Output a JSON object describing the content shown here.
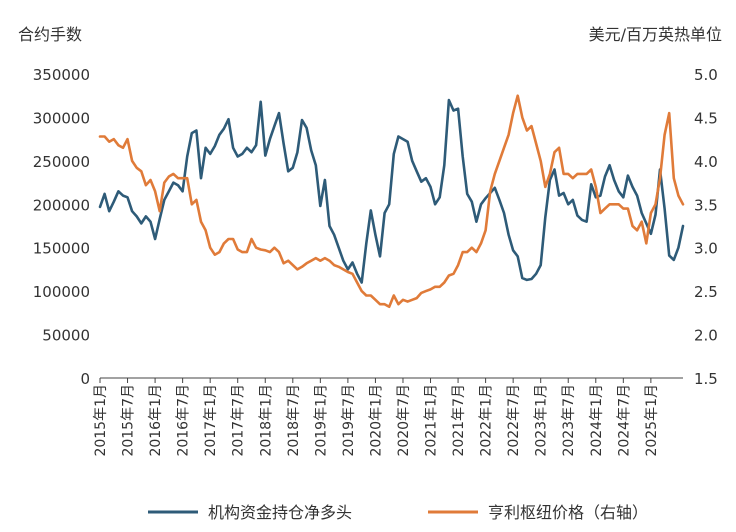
{
  "chart_data": {
    "type": "line",
    "left_axis_title": "合约手数",
    "right_axis_title": "美元/百万英热单位",
    "left_ylim": [
      0,
      350000
    ],
    "left_ticks": [
      0,
      50000,
      100000,
      150000,
      200000,
      250000,
      300000,
      350000
    ],
    "left_tick_labels": [
      "0",
      "50000",
      "100000",
      "150000",
      "200000",
      "250000",
      "300000",
      "350000"
    ],
    "right_ylim": [
      1.5,
      5.0
    ],
    "right_ticks": [
      1.5,
      2.0,
      2.5,
      3.0,
      3.5,
      4.0,
      4.5,
      5.0
    ],
    "right_tick_labels": [
      "1.5",
      "2.0",
      "2.5",
      "3.0",
      "3.5",
      "4.0",
      "4.5",
      "5.0"
    ],
    "x_start_month": 0,
    "x_end_month": 127,
    "x_tick_months": [
      0,
      6,
      12,
      18,
      24,
      30,
      36,
      42,
      48,
      54,
      60,
      66,
      72,
      78,
      84,
      90,
      96,
      102,
      108,
      114,
      120
    ],
    "x_tick_labels": [
      "2015年1月",
      "2015年7月",
      "2016年1月",
      "2016年7月",
      "2017年1月",
      "2017年7月",
      "2018年1月",
      "2018年7月",
      "2019年1月",
      "2019年7月",
      "2020年1月",
      "2020年7月",
      "2021年1月",
      "2021年7月",
      "2022年1月",
      "2022年7月",
      "2023年1月",
      "2023年7月",
      "2024年1月",
      "2024年7月",
      "2025年1月"
    ],
    "series": [
      {
        "name": "机构资金持仓净多头",
        "axis": "left",
        "color": "#2e5b78",
        "x": [
          0,
          1,
          2,
          3,
          4,
          5,
          6,
          7,
          8,
          9,
          10,
          11,
          12,
          13,
          14,
          15,
          16,
          17,
          18,
          19,
          20,
          21,
          22,
          23,
          24,
          25,
          26,
          27,
          28,
          29,
          30,
          31,
          32,
          33,
          34,
          35,
          36,
          37,
          38,
          39,
          40,
          41,
          42,
          43,
          44,
          45,
          46,
          47,
          48,
          49,
          50,
          51,
          52,
          53,
          54,
          55,
          56,
          57,
          58,
          59,
          60,
          61,
          62,
          63,
          64,
          65,
          66,
          67,
          68,
          69,
          70,
          71,
          72,
          73,
          74,
          75,
          76,
          77,
          78,
          79,
          80,
          81,
          82,
          83,
          84,
          85,
          86,
          87,
          88,
          89,
          90,
          91,
          92,
          93,
          94,
          95,
          96,
          97,
          98,
          99,
          100,
          101,
          102,
          103,
          104,
          105,
          106,
          107,
          108,
          109,
          110,
          111,
          112,
          113,
          114,
          115,
          116,
          117,
          118,
          119,
          120,
          121,
          122,
          123,
          124,
          125,
          126,
          127
        ],
        "values": [
          197000,
          212000,
          192000,
          203000,
          215000,
          210000,
          208000,
          192000,
          186000,
          178000,
          186000,
          180000,
          160000,
          183000,
          205000,
          215000,
          225000,
          222000,
          215000,
          255000,
          282000,
          285000,
          230000,
          265000,
          258000,
          267000,
          280000,
          287000,
          298000,
          265000,
          255000,
          258000,
          265000,
          260000,
          268000,
          318000,
          256000,
          275000,
          290000,
          305000,
          270000,
          238000,
          242000,
          260000,
          297000,
          288000,
          262000,
          245000,
          198000,
          228000,
          175000,
          165000,
          150000,
          135000,
          125000,
          133000,
          120000,
          110000,
          155000,
          193000,
          165000,
          140000,
          190000,
          200000,
          258000,
          278000,
          275000,
          272000,
          250000,
          238000,
          226000,
          230000,
          220000,
          200000,
          208000,
          245000,
          320000,
          308000,
          310000,
          255000,
          212000,
          203000,
          180000,
          200000,
          207000,
          213000,
          219000,
          205000,
          190000,
          165000,
          147000,
          140000,
          115000,
          113000,
          114000,
          120000,
          130000,
          185000,
          228000,
          240000,
          210000,
          213000,
          200000,
          205000,
          187000,
          182000,
          180000,
          223000,
          208000,
          210000,
          232000,
          245000,
          228000,
          215000,
          208000,
          233000,
          220000,
          210000,
          190000,
          178000,
          166000,
          188000,
          240000,
          195000,
          141000,
          136000,
          150000,
          175000
        ]
      },
      {
        "name": "亨利枢纽价格（右轴）",
        "axis": "right",
        "color": "#e07b39",
        "x": [
          0,
          1,
          2,
          3,
          4,
          5,
          6,
          7,
          8,
          9,
          10,
          11,
          12,
          13,
          14,
          15,
          16,
          17,
          18,
          19,
          20,
          21,
          22,
          23,
          24,
          25,
          26,
          27,
          28,
          29,
          30,
          31,
          32,
          33,
          34,
          35,
          36,
          37,
          38,
          39,
          40,
          41,
          42,
          43,
          44,
          45,
          46,
          47,
          48,
          49,
          50,
          51,
          52,
          53,
          54,
          55,
          56,
          57,
          58,
          59,
          60,
          61,
          62,
          63,
          64,
          65,
          66,
          67,
          68,
          69,
          70,
          71,
          72,
          73,
          74,
          75,
          76,
          77,
          78,
          79,
          80,
          81,
          82,
          83,
          84,
          85,
          86,
          87,
          88,
          89,
          90,
          91,
          92,
          93,
          94,
          95,
          96,
          97,
          98,
          99,
          100,
          101,
          102,
          103,
          104,
          105,
          106,
          107,
          108,
          109,
          110,
          111,
          112,
          113,
          114,
          115,
          116,
          117,
          118,
          119,
          120,
          121,
          122,
          123,
          124,
          125,
          126,
          127
        ],
        "values": [
          4.28,
          4.28,
          4.22,
          4.25,
          4.18,
          4.15,
          4.25,
          4.0,
          3.92,
          3.88,
          3.72,
          3.78,
          3.65,
          3.42,
          3.75,
          3.82,
          3.85,
          3.8,
          3.8,
          3.8,
          3.5,
          3.55,
          3.3,
          3.2,
          3.0,
          2.92,
          2.95,
          3.05,
          3.1,
          3.1,
          2.98,
          2.95,
          2.95,
          3.1,
          3.0,
          2.98,
          2.97,
          2.95,
          3.0,
          2.95,
          2.82,
          2.85,
          2.8,
          2.75,
          2.78,
          2.82,
          2.85,
          2.88,
          2.85,
          2.88,
          2.85,
          2.8,
          2.78,
          2.75,
          2.72,
          2.7,
          2.6,
          2.5,
          2.45,
          2.45,
          2.4,
          2.35,
          2.35,
          2.32,
          2.45,
          2.35,
          2.4,
          2.38,
          2.4,
          2.42,
          2.48,
          2.5,
          2.52,
          2.55,
          2.55,
          2.6,
          2.68,
          2.7,
          2.8,
          2.95,
          2.95,
          3.0,
          2.95,
          3.05,
          3.2,
          3.65,
          3.85,
          4.0,
          4.15,
          4.3,
          4.55,
          4.75,
          4.5,
          4.35,
          4.4,
          4.2,
          4.0,
          3.7,
          3.85,
          4.1,
          4.15,
          3.85,
          3.85,
          3.8,
          3.85,
          3.85,
          3.85,
          3.9,
          3.7,
          3.4,
          3.45,
          3.5,
          3.5,
          3.5,
          3.45,
          3.45,
          3.25,
          3.2,
          3.3,
          3.05,
          3.4,
          3.5,
          3.8,
          4.3,
          4.55,
          3.8,
          3.6,
          3.5
        ]
      }
    ]
  }
}
